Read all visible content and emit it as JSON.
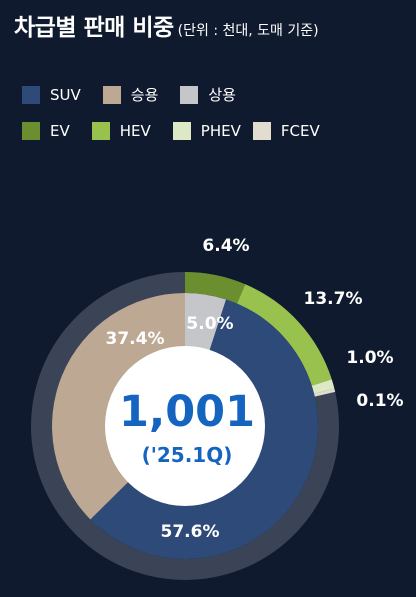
{
  "header": {
    "title": "차급별 판매 비중",
    "subtitle": "(단위 : 천대, 도매 기준)"
  },
  "legend": [
    {
      "label": "SUV",
      "color": "#2e4a78"
    },
    {
      "label": "승용",
      "color": "#bca893"
    },
    {
      "label": "상용",
      "color": "#c5c6ca"
    },
    {
      "label": "EV",
      "color": "#6b8e2f"
    },
    {
      "label": "HEV",
      "color": "#98c24d"
    },
    {
      "label": "PHEV",
      "color": "#dde8c4"
    },
    {
      "label": "FCEV",
      "color": "#e3ddd0"
    }
  ],
  "center": {
    "value": "1,001",
    "period": "('25.1Q)"
  },
  "chart_data": {
    "type": "pie",
    "total": 1001,
    "outer_ring": {
      "slices": [
        {
          "name": "EV",
          "value": 6.4,
          "label": "6.4%",
          "color": "#6b8e2f"
        },
        {
          "name": "HEV",
          "value": 13.7,
          "label": "13.7%",
          "color": "#98c24d"
        },
        {
          "name": "PHEV",
          "value": 1.0,
          "label": "1.0%",
          "color": "#dde8c4"
        },
        {
          "name": "FCEV",
          "value": 0.1,
          "label": "0.1%",
          "color": "#e3ddd0"
        }
      ],
      "remainder_color": "#3b4457"
    },
    "inner_ring": {
      "slices": [
        {
          "name": "상용",
          "value": 5.0,
          "label": "5.0%",
          "color": "#c5c6ca"
        },
        {
          "name": "SUV",
          "value": 57.6,
          "label": "57.6%",
          "color": "#2e4a78"
        },
        {
          "name": "승용",
          "value": 37.4,
          "label": "37.4%",
          "color": "#bca893"
        }
      ]
    },
    "label_color": "#ffffff",
    "center_value_color": "#1565c0"
  }
}
